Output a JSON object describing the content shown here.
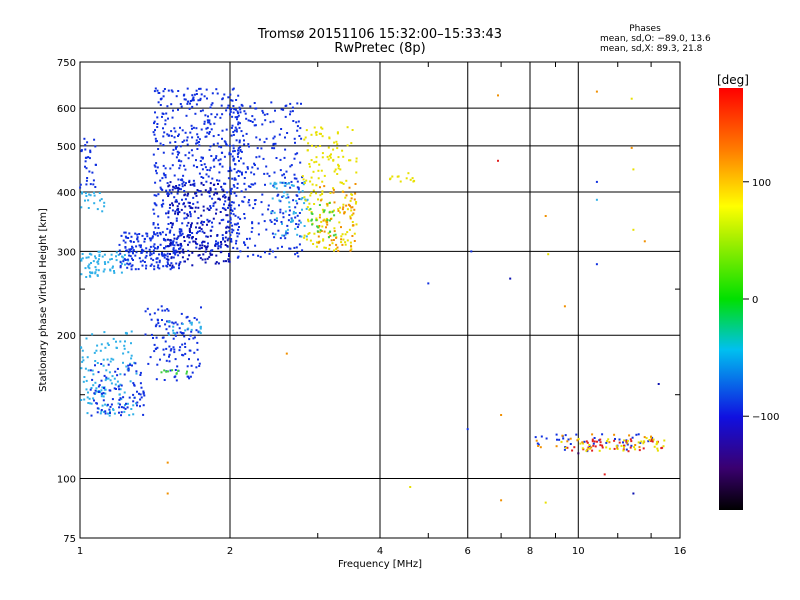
{
  "chart_data": {
    "type": "scatter",
    "title": "Tromsø 20151106 15:32:00–15:33:43",
    "subtitle": "RwPretec (8p)",
    "xlabel": "Frequency [MHz]",
    "ylabel": "Stationary phase Virtual Height [km]",
    "x_scale": "log",
    "y_scale": "log",
    "xlim": [
      1,
      16
    ],
    "ylim": [
      75,
      750
    ],
    "x_ticks": [
      1,
      2,
      4,
      6,
      8,
      10,
      16
    ],
    "x_tick_labels": [
      "1",
      "2",
      "4",
      "6",
      "8",
      "10",
      "16"
    ],
    "y_ticks": [
      75,
      100,
      200,
      300,
      400,
      500,
      600,
      750
    ],
    "y_tick_labels": [
      "75",
      "100",
      "200",
      "300",
      "400",
      "500",
      "600",
      "750"
    ],
    "grid": true,
    "phase_info": {
      "heading": "Phases",
      "line_o": "mean, sd,O: −89.0, 13.6",
      "line_x": "mean, sd,X:  89.3, 21.8"
    },
    "colorbar": {
      "label": "[deg]",
      "range": [
        -180,
        180
      ],
      "ticks": [
        -100,
        0,
        100
      ],
      "tick_labels": [
        "−100",
        "0",
        "100"
      ]
    },
    "point_colors": {
      "blue": "#1030e0",
      "darkblue": "#0a10b0",
      "cyan": "#30b0e8",
      "green": "#40d040",
      "yellow": "#e8e000",
      "orange": "#f09000",
      "red": "#e02020",
      "purple": "#300060"
    },
    "clusters": [
      {
        "color": "blue",
        "x_range": [
          1.0,
          1.08
        ],
        "y_range": [
          400,
          520
        ],
        "n": 30
      },
      {
        "color": "cyan",
        "x_range": [
          1.0,
          1.12
        ],
        "y_range": [
          360,
          400
        ],
        "n": 20
      },
      {
        "color": "cyan",
        "x_range": [
          1.0,
          1.25
        ],
        "y_range": [
          265,
          300
        ],
        "n": 70
      },
      {
        "color": "blue",
        "x_range": [
          1.2,
          1.6
        ],
        "y_range": [
          275,
          330
        ],
        "n": 180
      },
      {
        "color": "blue",
        "x_range": [
          1.4,
          2.1
        ],
        "y_range": [
          300,
          660
        ],
        "n": 520
      },
      {
        "color": "darkblue",
        "x_range": [
          1.5,
          2.0
        ],
        "y_range": [
          280,
          420
        ],
        "n": 200
      },
      {
        "color": "blue",
        "x_range": [
          2.0,
          2.8
        ],
        "y_range": [
          290,
          620
        ],
        "n": 280
      },
      {
        "color": "cyan",
        "x_range": [
          2.4,
          2.9
        ],
        "y_range": [
          320,
          420
        ],
        "n": 60
      },
      {
        "color": "yellow",
        "x_range": [
          2.8,
          3.6
        ],
        "y_range": [
          300,
          550
        ],
        "n": 180
      },
      {
        "color": "orange",
        "x_range": [
          3.0,
          3.6
        ],
        "y_range": [
          300,
          420
        ],
        "n": 60
      },
      {
        "color": "green",
        "x_range": [
          2.9,
          3.3
        ],
        "y_range": [
          320,
          380
        ],
        "n": 25
      },
      {
        "color": "yellow",
        "x_range": [
          4.1,
          4.7
        ],
        "y_range": [
          420,
          440
        ],
        "n": 12
      },
      {
        "color": "cyan",
        "x_range": [
          1.0,
          1.3
        ],
        "y_range": [
          135,
          205
        ],
        "n": 130
      },
      {
        "color": "blue",
        "x_range": [
          1.05,
          1.35
        ],
        "y_range": [
          135,
          175
        ],
        "n": 90
      },
      {
        "color": "blue",
        "x_range": [
          1.35,
          1.75
        ],
        "y_range": [
          160,
          230
        ],
        "n": 120
      },
      {
        "color": "cyan",
        "x_range": [
          1.5,
          1.75
        ],
        "y_range": [
          200,
          215
        ],
        "n": 20
      },
      {
        "color": "green",
        "x_range": [
          1.45,
          1.65
        ],
        "y_range": [
          165,
          170
        ],
        "n": 10
      },
      {
        "color": "blue",
        "x_range": [
          8.2,
          14.5
        ],
        "y_range": [
          114,
          124
        ],
        "n": 40
      },
      {
        "color": "red",
        "x_range": [
          9.5,
          14.8
        ],
        "y_range": [
          114,
          121
        ],
        "n": 40
      },
      {
        "color": "yellow",
        "x_range": [
          9.0,
          15.0
        ],
        "y_range": [
          114,
          122
        ],
        "n": 40
      },
      {
        "color": "orange",
        "x_range": [
          8.0,
          14.0
        ],
        "y_range": [
          116,
          124
        ],
        "n": 20
      }
    ],
    "points": [
      {
        "x": 6.9,
        "y": 638,
        "color": "orange"
      },
      {
        "x": 6.9,
        "y": 465,
        "color": "red"
      },
      {
        "x": 10.9,
        "y": 650,
        "color": "orange"
      },
      {
        "x": 12.8,
        "y": 628,
        "color": "yellow"
      },
      {
        "x": 12.8,
        "y": 495,
        "color": "orange"
      },
      {
        "x": 12.9,
        "y": 446,
        "color": "yellow"
      },
      {
        "x": 10.9,
        "y": 420,
        "color": "blue"
      },
      {
        "x": 10.9,
        "y": 385,
        "color": "cyan"
      },
      {
        "x": 8.6,
        "y": 356,
        "color": "orange"
      },
      {
        "x": 13.6,
        "y": 315,
        "color": "orange"
      },
      {
        "x": 12.9,
        "y": 333,
        "color": "yellow"
      },
      {
        "x": 6.1,
        "y": 300,
        "color": "blue"
      },
      {
        "x": 7.3,
        "y": 263,
        "color": "darkblue"
      },
      {
        "x": 5.0,
        "y": 257,
        "color": "blue"
      },
      {
        "x": 10.9,
        "y": 282,
        "color": "blue"
      },
      {
        "x": 8.7,
        "y": 296,
        "color": "yellow"
      },
      {
        "x": 9.4,
        "y": 230,
        "color": "orange"
      },
      {
        "x": 2.6,
        "y": 183,
        "color": "orange"
      },
      {
        "x": 6.0,
        "y": 127,
        "color": "blue"
      },
      {
        "x": 7.0,
        "y": 136,
        "color": "orange"
      },
      {
        "x": 14.5,
        "y": 158,
        "color": "darkblue"
      },
      {
        "x": 1.5,
        "y": 108,
        "color": "orange"
      },
      {
        "x": 4.6,
        "y": 96,
        "color": "yellow"
      },
      {
        "x": 1.5,
        "y": 93,
        "color": "orange"
      },
      {
        "x": 7.0,
        "y": 90,
        "color": "orange"
      },
      {
        "x": 8.6,
        "y": 89,
        "color": "yellow"
      },
      {
        "x": 12.9,
        "y": 93,
        "color": "darkblue"
      },
      {
        "x": 11.3,
        "y": 102,
        "color": "red"
      },
      {
        "x": 10.0,
        "y": 113,
        "color": "purple"
      }
    ]
  }
}
